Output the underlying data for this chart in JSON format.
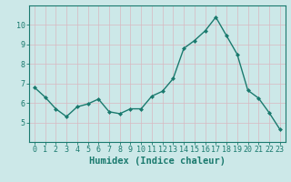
{
  "x": [
    0,
    1,
    2,
    3,
    4,
    5,
    6,
    7,
    8,
    9,
    10,
    11,
    12,
    13,
    14,
    15,
    16,
    17,
    18,
    19,
    20,
    21,
    22,
    23
  ],
  "y": [
    6.8,
    6.3,
    5.7,
    5.3,
    5.8,
    5.95,
    6.2,
    5.55,
    5.45,
    5.7,
    5.7,
    6.35,
    6.6,
    7.25,
    8.8,
    9.2,
    9.7,
    10.4,
    9.45,
    8.5,
    6.65,
    6.25,
    5.5,
    4.65
  ],
  "line_color": "#1a7a6e",
  "marker": "D",
  "marker_size": 2.0,
  "bg_color": "#cce8e8",
  "grid_color": "#d8b8c0",
  "xlabel": "Humidex (Indice chaleur)",
  "ylim": [
    4,
    11
  ],
  "xlim": [
    -0.5,
    23.5
  ],
  "yticks": [
    5,
    6,
    7,
    8,
    9,
    10
  ],
  "xticks": [
    0,
    1,
    2,
    3,
    4,
    5,
    6,
    7,
    8,
    9,
    10,
    11,
    12,
    13,
    14,
    15,
    16,
    17,
    18,
    19,
    20,
    21,
    22,
    23
  ],
  "tick_label_fontsize": 6.0,
  "xlabel_fontsize": 7.5,
  "line_width": 1.0
}
